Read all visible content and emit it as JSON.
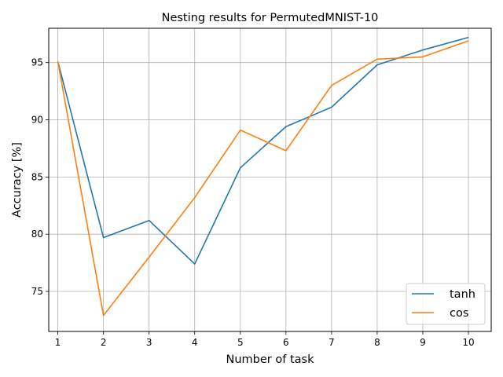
{
  "chart_data": {
    "type": "line",
    "title": "Nesting results for PermutedMNIST-10",
    "xlabel": "Number of task",
    "ylabel": "Accuracy [%]",
    "x": [
      1,
      2,
      3,
      4,
      5,
      6,
      7,
      8,
      9,
      10
    ],
    "xlim": [
      0.8,
      10.5
    ],
    "ylim": [
      71.5,
      98.0
    ],
    "xticks": [
      1,
      2,
      3,
      4,
      5,
      6,
      7,
      8,
      9,
      10
    ],
    "yticks": [
      75,
      80,
      85,
      90,
      95
    ],
    "grid": true,
    "legend_position": "lower-right",
    "series": [
      {
        "name": "tanh",
        "color": "#1f77b4",
        "values": [
          95.1,
          79.7,
          81.2,
          77.4,
          85.8,
          89.4,
          91.1,
          94.8,
          96.1,
          97.2
        ]
      },
      {
        "name": "cos",
        "color": "#ff7f0e",
        "values": [
          95.1,
          72.9,
          78.0,
          83.2,
          89.1,
          87.3,
          93.0,
          95.3,
          95.5,
          96.9
        ]
      }
    ]
  }
}
